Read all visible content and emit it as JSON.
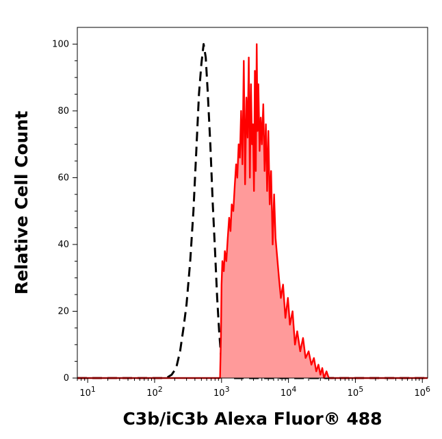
{
  "chart_data": {
    "type": "area",
    "title": "",
    "xlabel": "C3b/iC3b Alexa Fluor® 488",
    "ylabel": "Relative Cell Count",
    "x_scale": "log",
    "xlim": [
      7,
      1200000
    ],
    "ylim": [
      0,
      105
    ],
    "x_ticks": [
      {
        "value": 10,
        "base": "10",
        "exp": "1"
      },
      {
        "value": 100,
        "base": "10",
        "exp": "2"
      },
      {
        "value": 1000,
        "base": "10",
        "exp": "3"
      },
      {
        "value": 10000,
        "base": "10",
        "exp": "4"
      },
      {
        "value": 100000,
        "base": "10",
        "exp": "5"
      },
      {
        "value": 1000000,
        "base": "10",
        "exp": "6"
      }
    ],
    "y_ticks": [
      {
        "value": 0,
        "label": "0"
      },
      {
        "value": 20,
        "label": "20"
      },
      {
        "value": 40,
        "label": "40"
      },
      {
        "value": 60,
        "label": "60"
      },
      {
        "value": 80,
        "label": "80"
      },
      {
        "value": 100,
        "label": "100"
      }
    ],
    "grid": false,
    "legend": "none",
    "series": [
      {
        "style": "dashed",
        "color": "#000000",
        "fill": "none",
        "x": [
          7,
          100,
          150,
          180,
          210,
          240,
          270,
          300,
          340,
          380,
          420,
          460,
          500,
          540,
          580,
          620,
          680,
          740,
          800,
          860,
          920,
          980,
          1050,
          1150,
          1300,
          1500,
          2000,
          3000,
          5000,
          10000,
          100000,
          1200000
        ],
        "y": [
          0,
          0,
          0,
          1,
          3,
          8,
          15,
          22,
          35,
          50,
          68,
          85,
          94,
          100,
          96,
          86,
          70,
          52,
          38,
          24,
          14,
          7,
          4,
          2,
          1,
          0,
          0,
          0,
          0,
          0,
          0,
          0
        ]
      },
      {
        "style": "solid",
        "color": "#ff0000",
        "fill": "#ff9a9a",
        "x": [
          7,
          950,
          980,
          1000,
          1030,
          1080,
          1120,
          1180,
          1240,
          1300,
          1360,
          1420,
          1500,
          1580,
          1650,
          1720,
          1800,
          1880,
          1960,
          2050,
          2150,
          2250,
          2350,
          2450,
          2550,
          2650,
          2750,
          2850,
          2950,
          3050,
          3150,
          3250,
          3350,
          3450,
          3550,
          3700,
          3850,
          4000,
          4200,
          4400,
          4600,
          4800,
          5000,
          5250,
          5500,
          5800,
          6100,
          6400,
          6800,
          7200,
          7700,
          8300,
          9000,
          9800,
          10500,
          11500,
          12500,
          13500,
          15000,
          16500,
          18000,
          20000,
          22000,
          24000,
          26000,
          28000,
          30000,
          32000,
          34000,
          37000,
          40000,
          100000,
          1000000,
          1200000
        ],
        "y": [
          0,
          0,
          12,
          28,
          35,
          32,
          38,
          35,
          42,
          48,
          44,
          52,
          50,
          58,
          64,
          60,
          70,
          66,
          80,
          64,
          95,
          58,
          84,
          72,
          96,
          60,
          88,
          70,
          76,
          56,
          92,
          62,
          100,
          74,
          88,
          68,
          78,
          70,
          82,
          62,
          76,
          56,
          74,
          52,
          62,
          40,
          55,
          42,
          36,
          30,
          24,
          28,
          18,
          24,
          16,
          20,
          10,
          14,
          8,
          12,
          6,
          8,
          4,
          6,
          2,
          4,
          1,
          3,
          0,
          2,
          0,
          0,
          0,
          0
        ]
      }
    ]
  }
}
